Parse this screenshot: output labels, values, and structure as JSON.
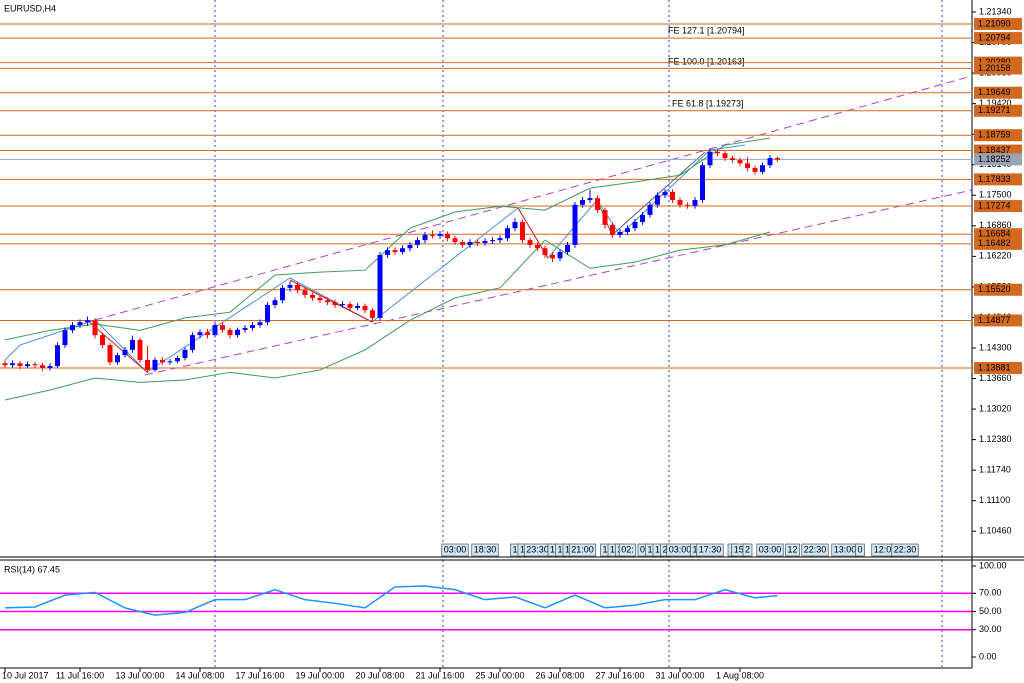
{
  "chart_data": [
    {
      "type": "candlestick",
      "title": "EURUSD,H4",
      "categories": [
        "10 Jul 2017",
        null,
        null,
        null,
        null,
        null,
        null,
        null,
        null,
        null,
        "11 Jul 16:00",
        null,
        null,
        null,
        null,
        null,
        null,
        null,
        "13 Jul 00:00",
        null,
        null,
        null,
        null,
        null,
        null,
        null,
        "14 Jul 08:00",
        null,
        null,
        null,
        null,
        null,
        null,
        null,
        "17 Jul 16:00",
        null,
        null,
        null,
        null,
        null,
        null,
        null,
        "19 Jul 00:00",
        null,
        null,
        null,
        null,
        null,
        null,
        null,
        "20 Jul 08:00",
        null,
        null,
        null,
        null,
        null,
        null,
        null,
        "21 Jul 16:00",
        null,
        null,
        null,
        null,
        null,
        null,
        null,
        "25 Jul 00:00",
        null,
        null,
        null,
        null,
        null,
        null,
        null,
        "26 Jul 08:00",
        null,
        null,
        null,
        null,
        null,
        null,
        null,
        "27 Jul 16:00",
        null,
        null,
        null,
        null,
        null,
        null,
        null,
        "31 Jul 00:00",
        null,
        null,
        null,
        null,
        null,
        null,
        null,
        "1 Aug 08:00",
        null,
        null,
        null,
        null,
        null
      ],
      "open": [
        1.1398,
        1.1394,
        1.1398,
        1.1392,
        1.1396,
        1.1394,
        1.1388,
        1.1392,
        1.1436,
        1.1467,
        1.1478,
        1.1484,
        1.1488,
        1.1457,
        1.1436,
        1.14,
        1.1415,
        1.1426,
        1.1447,
        1.1405,
        1.1384,
        1.1405,
        1.14,
        1.1402,
        1.1409,
        1.1426,
        1.1457,
        1.1463,
        1.1457,
        1.1478,
        1.1468,
        1.1457,
        1.1468,
        1.1472,
        1.1478,
        1.1484,
        1.152,
        1.153,
        1.1556,
        1.1562,
        1.1551,
        1.1541,
        1.1535,
        1.153,
        1.1526,
        1.152,
        1.1522,
        1.1514,
        1.1518,
        1.1509,
        1.1493,
        1.1625,
        1.1635,
        1.1631,
        1.1639,
        1.1646,
        1.1656,
        1.1667,
        1.1665,
        1.1669,
        1.166,
        1.1652,
        1.1646,
        1.1652,
        1.165,
        1.1654,
        1.1656,
        1.166,
        1.1681,
        1.1694,
        1.1656,
        1.1646,
        1.1639,
        1.1625,
        1.1618,
        1.1631,
        1.1646,
        1.173,
        1.174,
        1.1744,
        1.1719,
        1.1688,
        1.1667,
        1.1673,
        1.1681,
        1.1694,
        1.1709,
        1.173,
        1.175,
        1.1757,
        1.174,
        1.173,
        1.1728,
        1.174,
        1.1813,
        1.1841,
        1.1838,
        1.1828,
        1.1824,
        1.1817,
        1.1807,
        1.1799,
        1.1813,
        1.1828
      ],
      "high": [
        1.1404,
        1.1404,
        1.1403,
        1.1402,
        1.1401,
        1.1399,
        1.1398,
        1.1442,
        1.1473,
        1.1484,
        1.149,
        1.1496,
        1.1492,
        1.1462,
        1.144,
        1.142,
        1.1432,
        1.1456,
        1.1452,
        1.1434,
        1.141,
        1.141,
        1.1407,
        1.1414,
        1.1431,
        1.1463,
        1.1469,
        1.147,
        1.1484,
        1.1484,
        1.1472,
        1.1473,
        1.1478,
        1.1484,
        1.149,
        1.1526,
        1.1536,
        1.1562,
        1.157,
        1.1567,
        1.1556,
        1.1546,
        1.154,
        1.1536,
        1.1531,
        1.1528,
        1.1527,
        1.1524,
        1.1523,
        1.1514,
        1.1631,
        1.1641,
        1.1641,
        1.1645,
        1.1652,
        1.1662,
        1.1673,
        1.1676,
        1.1675,
        1.1674,
        1.1665,
        1.1657,
        1.1658,
        1.1657,
        1.166,
        1.1662,
        1.1666,
        1.1687,
        1.1702,
        1.1699,
        1.1661,
        1.1651,
        1.1644,
        1.1631,
        1.1637,
        1.1652,
        1.1736,
        1.1746,
        1.1762,
        1.175,
        1.1724,
        1.1693,
        1.1679,
        1.1687,
        1.17,
        1.1715,
        1.1736,
        1.1756,
        1.1763,
        1.1762,
        1.1745,
        1.1735,
        1.1746,
        1.1819,
        1.1847,
        1.1846,
        1.1843,
        1.1833,
        1.1829,
        1.183,
        1.1812,
        1.1819,
        1.1834,
        1.1831
      ],
      "low": [
        1.1388,
        1.1388,
        1.1386,
        1.1387,
        1.1388,
        1.1382,
        1.1383,
        1.1388,
        1.143,
        1.1461,
        1.1472,
        1.1476,
        1.145,
        1.143,
        1.1394,
        1.1395,
        1.141,
        1.142,
        1.1399,
        1.1378,
        1.138,
        1.1395,
        1.1395,
        1.1398,
        1.1404,
        1.142,
        1.145,
        1.145,
        1.1452,
        1.1462,
        1.145,
        1.1452,
        1.1462,
        1.1466,
        1.1472,
        1.1478,
        1.1514,
        1.1524,
        1.1548,
        1.1545,
        1.1535,
        1.1529,
        1.1524,
        1.152,
        1.1514,
        1.1515,
        1.1508,
        1.1509,
        1.1503,
        1.1485,
        1.1488,
        1.1619,
        1.1625,
        1.1626,
        1.1633,
        1.164,
        1.165,
        1.166,
        1.1659,
        1.1654,
        1.1646,
        1.164,
        1.164,
        1.1644,
        1.1644,
        1.1648,
        1.165,
        1.1654,
        1.1675,
        1.165,
        1.164,
        1.1633,
        1.1619,
        1.161,
        1.1612,
        1.1625,
        1.164,
        1.1724,
        1.1734,
        1.1713,
        1.168,
        1.1661,
        1.1661,
        1.1667,
        1.1675,
        1.1688,
        1.1703,
        1.1724,
        1.1744,
        1.1734,
        1.1724,
        1.1722,
        1.1722,
        1.1734,
        1.1807,
        1.1832,
        1.1822,
        1.1818,
        1.1811,
        1.18,
        1.1793,
        1.1794,
        1.1807,
        1.182
      ],
      "close": [
        1.1394,
        1.1398,
        1.1392,
        1.1396,
        1.1394,
        1.1388,
        1.1392,
        1.1436,
        1.1467,
        1.1478,
        1.1484,
        1.1488,
        1.1457,
        1.1436,
        1.14,
        1.1415,
        1.1426,
        1.1447,
        1.1405,
        1.1384,
        1.1405,
        1.14,
        1.1402,
        1.1409,
        1.1426,
        1.1457,
        1.1463,
        1.1457,
        1.1478,
        1.1468,
        1.1457,
        1.1468,
        1.1472,
        1.1478,
        1.1484,
        1.152,
        1.153,
        1.1556,
        1.1562,
        1.1551,
        1.1541,
        1.1535,
        1.153,
        1.1526,
        1.152,
        1.1522,
        1.1514,
        1.1518,
        1.1509,
        1.1493,
        1.1625,
        1.1635,
        1.1631,
        1.1639,
        1.1646,
        1.1656,
        1.1667,
        1.1665,
        1.1669,
        1.166,
        1.1652,
        1.1646,
        1.1652,
        1.165,
        1.1654,
        1.1656,
        1.166,
        1.1681,
        1.1694,
        1.1656,
        1.1646,
        1.1639,
        1.1625,
        1.1618,
        1.1631,
        1.1646,
        1.173,
        1.174,
        1.1744,
        1.1719,
        1.1688,
        1.1667,
        1.1673,
        1.1681,
        1.1694,
        1.1709,
        1.173,
        1.175,
        1.1757,
        1.174,
        1.173,
        1.1728,
        1.174,
        1.1813,
        1.1841,
        1.1838,
        1.1828,
        1.1824,
        1.1817,
        1.1807,
        1.1799,
        1.1813,
        1.1828,
        1.1825
      ],
      "up_color": "#0000ff",
      "down_color": "#ff0000",
      "ylim": [
        1.0992,
        1.2155
      ],
      "yticks": [
        {
          "value": 1.1046,
          "label": "1.10460"
        },
        {
          "value": 1.111,
          "label": "1.11100"
        },
        {
          "value": 1.1174,
          "label": "1.11740"
        },
        {
          "value": 1.1238,
          "label": "1.12380"
        },
        {
          "value": 1.1302,
          "label": "1.13020"
        },
        {
          "value": 1.1366,
          "label": "1.13660"
        },
        {
          "value": 1.143,
          "label": "1.14300"
        },
        {
          "value": 1.1494,
          "label": "1.14940"
        },
        {
          "value": 1.1558,
          "label": "1.15580"
        },
        {
          "value": 1.1622,
          "label": "1.16220"
        },
        {
          "value": 1.1686,
          "label": "1.16860"
        },
        {
          "value": 1.175,
          "label": "1.17500"
        },
        {
          "value": 1.1814,
          "label": "1.18140"
        },
        {
          "value": 1.1878,
          "label": "1.18780"
        },
        {
          "value": 1.1942,
          "label": "1.19420"
        },
        {
          "value": 1.2006,
          "label": "1.20060"
        },
        {
          "value": 1.207,
          "label": "1.20700"
        },
        {
          "value": 1.2134,
          "label": "1.21340"
        }
      ],
      "levels": [
        {
          "value": 1.2109,
          "label": "1.21090"
        },
        {
          "value": 1.20794,
          "label": "1.20794"
        },
        {
          "value": 1.2028,
          "label": "1.20280"
        },
        {
          "value": 1.20158,
          "label": "1.20158"
        },
        {
          "value": 1.19649,
          "label": "1.19649"
        },
        {
          "value": 1.19271,
          "label": "1.19271"
        },
        {
          "value": 1.18759,
          "label": "1.18759"
        },
        {
          "value": 1.18437,
          "label": "1.18437"
        },
        {
          "value": 1.17833,
          "label": "1.17833"
        },
        {
          "value": 1.17274,
          "label": "1.17274"
        },
        {
          "value": 1.16684,
          "label": "1.16684"
        },
        {
          "value": 1.16482,
          "label": "1.16482"
        },
        {
          "value": 1.1552,
          "label": "1.15520"
        },
        {
          "value": 1.14877,
          "label": "1.14877"
        },
        {
          "value": 1.13881,
          "label": "1.13881"
        }
      ],
      "level_color": "#d2691e",
      "bid": {
        "value": 1.18252,
        "label": "1.18252"
      },
      "bid_color": "#9aa4b4",
      "bands": [
        {
          "color": "#3c9c5a",
          "x": [
            0,
            6,
            12,
            18,
            24,
            30,
            36,
            42,
            48,
            54,
            60,
            66,
            72,
            78,
            84,
            90,
            96,
            102
          ],
          "values": [
            1.1447,
            1.1467,
            1.148,
            1.1467,
            1.1493,
            1.1505,
            1.1583,
            1.1589,
            1.1593,
            1.1681,
            1.1715,
            1.1727,
            1.1719,
            1.1765,
            1.1778,
            1.1792,
            1.1855,
            1.187
          ]
        },
        {
          "color": "#3c9c5a",
          "x": [
            0,
            6,
            12,
            18,
            24,
            30,
            36,
            42,
            48,
            54,
            60,
            66,
            72,
            78,
            84,
            90,
            96,
            102
          ],
          "values": [
            1.1321,
            1.1342,
            1.1367,
            1.1358,
            1.1363,
            1.1379,
            1.1367,
            1.1384,
            1.1426,
            1.1488,
            1.1535,
            1.1556,
            1.1656,
            1.1597,
            1.161,
            1.1635,
            1.1646,
            1.1673
          ]
        }
      ],
      "annotations": [
        "FE 127.1 [1.20794]",
        "FE 100.0 [1.20163]",
        "FE 61.8 [1.19273]"
      ],
      "events": {
        "x": [
          60,
          64,
          68,
          69,
          71,
          73,
          74,
          75,
          77,
          80,
          81,
          82,
          83,
          85,
          86,
          87,
          88,
          90,
          92,
          94,
          97,
          98,
          99,
          102,
          105,
          108,
          112,
          114,
          117,
          120
        ],
        "labels": [
          "03:00",
          "18:30",
          "1",
          "1",
          "23:30",
          "1",
          "1",
          "1",
          "21:00",
          "1",
          "1",
          "2",
          "02:",
          "0",
          "1",
          "1",
          "2",
          "03:00",
          "1",
          "17:30",
          "1",
          "15:",
          "2",
          "03:00",
          "12",
          "22:30",
          "13:00",
          "0",
          "12:0",
          "22:30"
        ]
      }
    },
    {
      "type": "line",
      "title": "RSI(14) 67.45",
      "x": [
        0,
        4,
        8,
        12,
        16,
        20,
        24,
        28,
        32,
        36,
        40,
        44,
        48,
        52,
        56,
        60,
        64,
        68,
        72,
        76,
        80,
        84,
        88,
        92,
        96,
        100,
        103
      ],
      "values": [
        54,
        55,
        68,
        71,
        54,
        46,
        49,
        63,
        63,
        74,
        63,
        59,
        54,
        77,
        78,
        74,
        63,
        66,
        54,
        68,
        54,
        57,
        63,
        63,
        74,
        65,
        67.45
      ],
      "color": "#1e90ff",
      "ylim": [
        -11,
        105.5
      ],
      "yticks": [
        {
          "value": 100,
          "label": "100.00"
        },
        {
          "value": 70,
          "label": "70.00"
        },
        {
          "value": 50,
          "label": "50.00"
        },
        {
          "value": 30,
          "label": "30.00"
        },
        {
          "value": 0,
          "label": "0.00"
        }
      ],
      "levels": [
        70,
        50,
        30
      ],
      "level_color": "#ff00ff"
    }
  ]
}
